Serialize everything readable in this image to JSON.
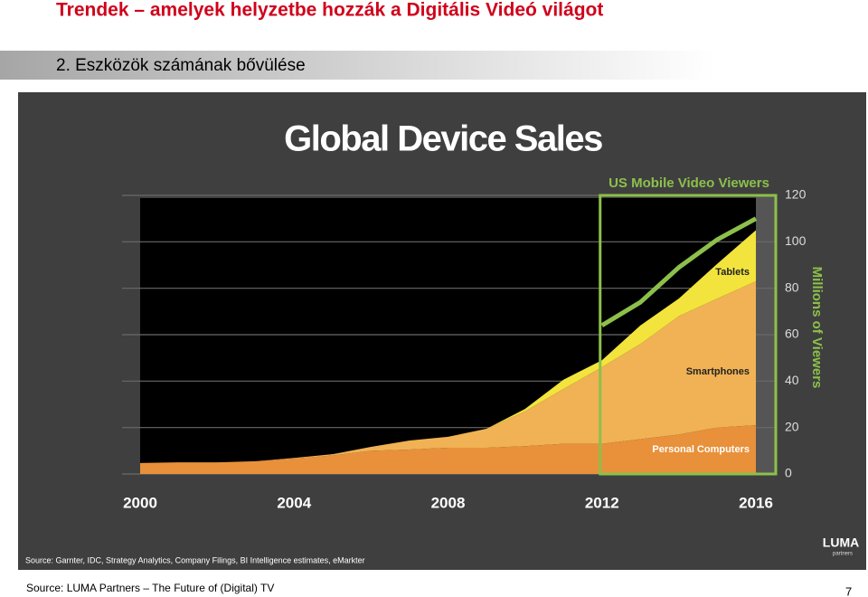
{
  "header": {
    "title": "Trendek – amelyek helyzetbe hozzák a Digitális Videó világot",
    "subtitle": "2. Eszközök számának bővülése"
  },
  "chart_data": {
    "type": "area",
    "title": "Global Device Sales",
    "x": [
      2000,
      2001,
      2002,
      2003,
      2004,
      2005,
      2006,
      2007,
      2008,
      2009,
      2010,
      2011,
      2012,
      2013,
      2014,
      2015,
      2016
    ],
    "xlim": [
      2000,
      2016
    ],
    "xticks": [
      2000,
      2004,
      2008,
      2012,
      2016
    ],
    "ylim": [
      0,
      120
    ],
    "yticks": [
      0,
      20,
      40,
      60,
      80,
      100,
      120
    ],
    "y_axis_label": "Millions of Viewers",
    "grid": true,
    "series": [
      {
        "name": "Personal Computers",
        "color": "#e8913a",
        "values": [
          4.7,
          5,
          5,
          5.5,
          6.6,
          8,
          10,
          10.5,
          11.3,
          11.3,
          12,
          13,
          13,
          15,
          17,
          20,
          21
        ]
      },
      {
        "name": "Smartphones",
        "color": "#f0b254",
        "values": [
          0,
          0,
          0,
          0,
          0.3,
          0.5,
          1.7,
          3.9,
          4.7,
          8.2,
          15,
          23.6,
          33,
          41,
          51,
          55.6,
          62
        ]
      },
      {
        "name": "Tablets",
        "color": "#f2e43c",
        "values": [
          0,
          0,
          0,
          0,
          0,
          0,
          0,
          0,
          0,
          0,
          1,
          4,
          3,
          8,
          7.6,
          15,
          22
        ]
      },
      {
        "name": "US Mobile Video Viewers",
        "type": "line",
        "color": "#8cc04b",
        "values": [
          null,
          null,
          null,
          null,
          null,
          null,
          null,
          null,
          null,
          null,
          null,
          null,
          64,
          74,
          89,
          101,
          110
        ]
      }
    ],
    "source": "Source: Garnter, IDC, Strategy Analytics, Company Filings, BI Intelligence estimates, eMarkter",
    "logo": "LUMA",
    "logo_sub": "partners"
  },
  "footer": {
    "source": "Source: LUMA Partners – The Future of (Digital) TV",
    "page": 7
  }
}
